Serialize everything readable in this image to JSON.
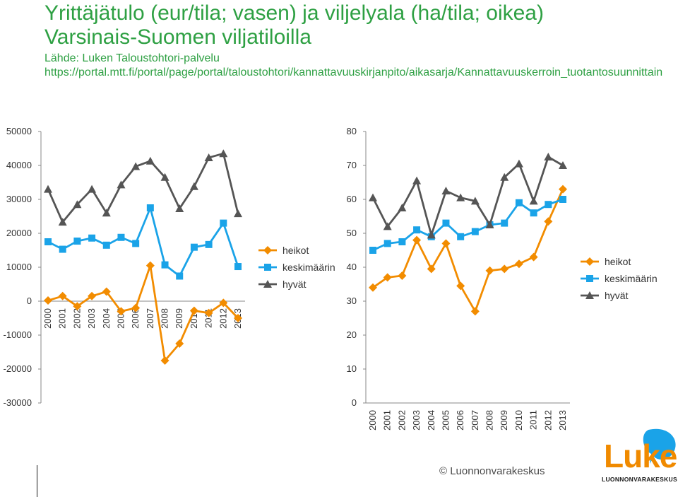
{
  "header": {
    "title_line1": "Yrittäjätulo (eur/tila; vasen) ja viljelyala (ha/tila; oikea)",
    "title_line2": "Varsinais-Suomen viljatiloilla",
    "source_line": "Lähde: Luken Taloustohtori-palvelu",
    "url": "https://portal.mtt.fi/portal/page/portal/taloustohtori/kannattavuuskirjanpito/aikasarja/Kannattavuuskerroin_tuotantosuunnittain"
  },
  "colors": {
    "heikot": "#f28c00",
    "keskimaarin": "#1aa3e8",
    "hyvat": "#555555",
    "title": "#2ea043",
    "axis": "#888888"
  },
  "chart_data": [
    {
      "type": "line",
      "title": "Yrittäjätulo (eur/tila)",
      "categories": [
        "2000",
        "2001",
        "2002",
        "2003",
        "2004",
        "2005",
        "2006",
        "2007",
        "2008",
        "2009",
        "2010",
        "2011",
        "2012",
        "2013"
      ],
      "ylim": [
        -30000,
        50000
      ],
      "yticks": [
        "50000",
        "40000",
        "30000",
        "20000",
        "10000",
        "0",
        "-10000",
        "-20000",
        "-30000"
      ],
      "legend": "right",
      "series": [
        {
          "name": "heikot",
          "marker": "diamond",
          "values": [
            200,
            1500,
            -1500,
            1500,
            2800,
            -3000,
            -2000,
            10500,
            -17500,
            -12500,
            -2800,
            -3500,
            -500,
            -5000
          ]
        },
        {
          "name": "keskimäärin",
          "marker": "square",
          "values": [
            17500,
            15300,
            17700,
            18600,
            16500,
            18800,
            17000,
            27500,
            10700,
            7400,
            15900,
            16700,
            23000,
            10200
          ]
        },
        {
          "name": "hyvät",
          "marker": "triangle",
          "values": [
            33000,
            23300,
            28500,
            33000,
            26000,
            34300,
            39700,
            41300,
            36500,
            27300,
            33800,
            42300,
            43500,
            25800
          ]
        }
      ]
    },
    {
      "type": "line",
      "title": "Viljelyala (ha/tila)",
      "categories": [
        "2000",
        "2001",
        "2002",
        "2003",
        "2004",
        "2005",
        "2006",
        "2007",
        "2008",
        "2009",
        "2010",
        "2011",
        "2012",
        "2013"
      ],
      "ylim": [
        0,
        80
      ],
      "yticks": [
        "80",
        "70",
        "60",
        "50",
        "40",
        "30",
        "20",
        "10",
        "0"
      ],
      "legend": "right",
      "series": [
        {
          "name": "heikot",
          "marker": "diamond",
          "values": [
            34,
            37,
            37.5,
            48,
            39.5,
            47,
            34.5,
            27,
            39,
            39.5,
            41,
            43,
            53.5,
            63
          ]
        },
        {
          "name": "keskimäärin",
          "marker": "square",
          "values": [
            45,
            47,
            47.5,
            51,
            49,
            53,
            49,
            50.5,
            52.5,
            53,
            59,
            56,
            58.5,
            60
          ]
        },
        {
          "name": "hyvät",
          "marker": "triangle",
          "values": [
            60.5,
            52,
            57.5,
            65.5,
            49.5,
            62.5,
            60.5,
            59.5,
            52.5,
            66.5,
            70.5,
            59.5,
            72.5,
            70
          ]
        }
      ]
    }
  ],
  "footer": {
    "copyright": "© Luonnonvarakeskus",
    "logo_word": "Luke",
    "logo_sub": "LUONNONVARAKESKUS"
  }
}
